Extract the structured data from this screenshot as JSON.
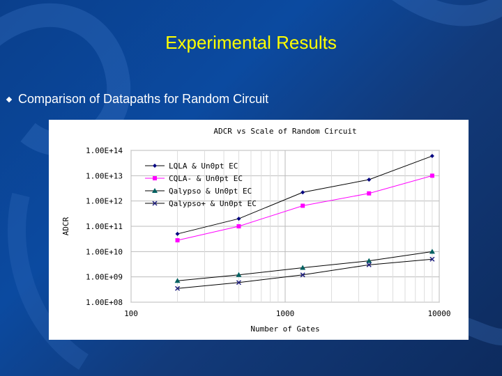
{
  "slide": {
    "title": "Experimental Results",
    "bullet": "Comparison of Datapaths for Random Circuit"
  },
  "chart_data": {
    "type": "line",
    "title": "ADCR vs Scale of Random Circuit",
    "xlabel": "Number of Gates",
    "ylabel": "ADCR",
    "xscale": "log",
    "yscale": "log",
    "xlim": [
      100,
      10000
    ],
    "ylim": [
      100000000.0,
      100000000000000.0
    ],
    "x_ticks": [
      "100",
      "1000",
      "10000"
    ],
    "y_ticks": [
      "1.00E+08",
      "1.00E+09",
      "1.00E+10",
      "1.00E+11",
      "1.00E+12",
      "1.00E+13",
      "1.00E+14"
    ],
    "grid": true,
    "legend_position": "top-left",
    "x": [
      200,
      500,
      1300,
      3500,
      9000
    ],
    "series": [
      {
        "name": "LQLA & Un0pt EC",
        "color": "#000080",
        "marker": "diamond",
        "values": [
          50000000000.0,
          200000000000.0,
          2200000000000.0,
          7000000000000.0,
          60000000000000.0
        ]
      },
      {
        "name": "CQLA- & Un0pt EC",
        "color": "#ff00ff",
        "marker": "square",
        "values": [
          28000000000.0,
          100000000000.0,
          650000000000.0,
          2000000000000.0,
          10000000000000.0
        ]
      },
      {
        "name": "Qalypso & Un0pt EC",
        "color": "#006060",
        "marker": "triangle",
        "values": [
          700000000.0,
          1200000000.0,
          2300000000.0,
          4300000000.0,
          10000000000.0
        ]
      },
      {
        "name": "Qalypso+ & Un0pt EC",
        "color": "#202080",
        "marker": "x",
        "values": [
          350000000.0,
          600000000.0,
          1200000000.0,
          3000000000.0,
          5000000000.0
        ]
      }
    ]
  }
}
